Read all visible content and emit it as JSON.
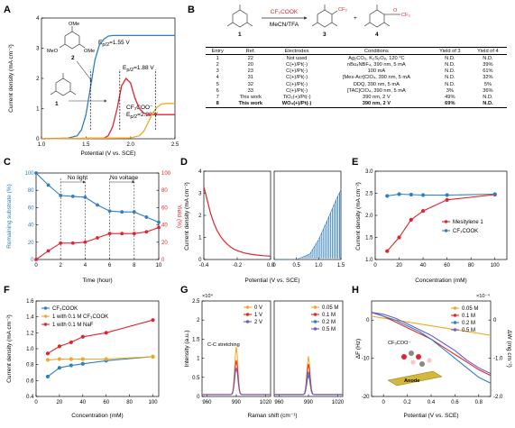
{
  "panels": {
    "A": "A",
    "B": "B",
    "C": "C",
    "D": "D",
    "E": "E",
    "F": "F",
    "G": "G",
    "H": "H"
  },
  "colors": {
    "blue": "#2f7fc1",
    "red": "#e0252e",
    "orange": "#f5a623",
    "purple": "#6a5acd",
    "gray": "#888888"
  },
  "chart_data": [
    {
      "panel": "A",
      "type": "line",
      "xlabel": "Potential (V vs. SCE)",
      "ylabel": "Current density (mA cm⁻²)",
      "xlim": [
        1.0,
        2.5
      ],
      "ylim": [
        0,
        4
      ],
      "xticks": [
        "1.0",
        "1.5",
        "2.0",
        "2.5"
      ],
      "yticks": [
        "0",
        "1",
        "2",
        "3",
        "4"
      ],
      "annotations": {
        "e1": "E",
        "e1sub": "p/2",
        "e1val": "=1.55 V",
        "e2": "E",
        "e2sub": "p/2",
        "e2val": "=1.88 V",
        "e3pre": "CF₃COO⁻",
        "e3": "E",
        "e3sub": "p/2",
        "e3val": "=2.28 V",
        "m1": "1",
        "m2": "2"
      },
      "series": [
        {
          "color": "#2f7fc1",
          "x": [
            1.0,
            1.3,
            1.4,
            1.45,
            1.5,
            1.55,
            1.6,
            1.65,
            1.7,
            1.75,
            1.8,
            1.85,
            1.9,
            2.0,
            2.1,
            2.2,
            2.3,
            2.4,
            2.5
          ],
          "y": [
            0.0,
            0.02,
            0.1,
            0.3,
            0.8,
            1.7,
            2.6,
            3.1,
            3.3,
            3.4,
            3.42,
            3.42,
            3.42,
            3.42,
            3.42,
            3.42,
            3.42,
            3.42,
            3.42
          ]
        },
        {
          "color": "#e0252e",
          "x": [
            1.0,
            1.7,
            1.75,
            1.8,
            1.85,
            1.9,
            1.95,
            2.0,
            2.05,
            2.1,
            2.15,
            2.2,
            2.3,
            2.4,
            2.5
          ],
          "y": [
            0.0,
            0.02,
            0.1,
            0.4,
            1.0,
            1.75,
            2.0,
            1.85,
            1.35,
            1.0,
            0.85,
            0.8,
            0.8,
            0.8,
            0.8
          ]
        },
        {
          "color": "#f5a623",
          "x": [
            1.0,
            2.0,
            2.1,
            2.15,
            2.2,
            2.25,
            2.3,
            2.35,
            2.4,
            2.45,
            2.5
          ],
          "y": [
            0.0,
            0.03,
            0.1,
            0.25,
            0.55,
            0.85,
            1.05,
            1.15,
            1.17,
            1.17,
            1.17
          ]
        }
      ],
      "markers": [
        1.55,
        1.88,
        2.28
      ]
    },
    {
      "panel": "C",
      "type": "line",
      "xlabel": "Time (hour)",
      "ylabel": "Remaining substrate (%)",
      "y2label": "Yield (%)",
      "xlim": [
        0,
        10
      ],
      "ylim": [
        0,
        100
      ],
      "y2lim": [
        0,
        100
      ],
      "xticks": [
        "0",
        "2",
        "4",
        "6",
        "8",
        "10"
      ],
      "yticks": [
        "0",
        "20",
        "40",
        "60",
        "80",
        "100"
      ],
      "annotations": {
        "nolight": "No light",
        "novoltage": "No voltage"
      },
      "series": [
        {
          "name": "Remaining substrate",
          "color": "#2f7fc1",
          "axis": "left",
          "x": [
            0,
            1,
            2,
            3,
            4,
            5,
            6,
            7,
            8,
            9,
            10
          ],
          "y": [
            100,
            86,
            74,
            73,
            72,
            63,
            56,
            55,
            55,
            49,
            43
          ]
        },
        {
          "name": "Yield",
          "color": "#e0252e",
          "axis": "right",
          "x": [
            0,
            1,
            2,
            3,
            4,
            5,
            6,
            7,
            8,
            9,
            10
          ],
          "y": [
            0,
            10,
            19,
            19,
            20,
            25,
            30,
            30,
            30,
            32,
            37
          ]
        }
      ]
    },
    {
      "panel": "D",
      "type": "line",
      "xlabel": "Potential (V vs. SCE)",
      "ylabel": "Current density (mA cm⁻²)",
      "left_xlim": [
        -0.4,
        0.0
      ],
      "left_xticks": [
        "-0.4",
        "-0.2",
        "0.0"
      ],
      "right_xlim": [
        0,
        1.5
      ],
      "right_xticks": [
        "0",
        "0.5",
        "1.0",
        "1.5"
      ],
      "ylim": [
        0,
        4
      ],
      "yticks": [
        "0",
        "1",
        "2",
        "3",
        "4"
      ],
      "series": [
        {
          "color": "#e0252e",
          "x": [
            -0.4,
            -0.38,
            -0.36,
            -0.34,
            -0.32,
            -0.3,
            -0.28,
            -0.26,
            -0.24,
            -0.22,
            -0.2,
            -0.16,
            -0.12,
            -0.08,
            -0.04,
            0.0
          ],
          "y": [
            3.3,
            2.7,
            2.1,
            1.65,
            1.3,
            1.05,
            0.85,
            0.7,
            0.57,
            0.47,
            0.4,
            0.3,
            0.24,
            0.2,
            0.17,
            0.15
          ]
        },
        {
          "color": "#2f7fc1",
          "x": [
            0.0,
            0.5,
            0.8,
            1.0,
            1.2,
            1.4,
            1.5
          ],
          "y": [
            0.0,
            0.0,
            0.25,
            0.9,
            1.8,
            2.75,
            3.15
          ],
          "chopped": true
        }
      ]
    },
    {
      "panel": "E",
      "type": "line",
      "xlabel": "Concentration (mM)",
      "ylabel": "Current density (mA cm⁻²)",
      "xlim": [
        0,
        110
      ],
      "ylim": [
        1.0,
        3.0
      ],
      "xticks": [
        "0",
        "20",
        "40",
        "60",
        "80",
        "100"
      ],
      "yticks": [
        "1.0",
        "1.5",
        "2.0",
        "2.5",
        "3.0"
      ],
      "series": [
        {
          "name": "Mesitylene 1",
          "color": "#e0252e",
          "x": [
            10,
            20,
            30,
            40,
            60,
            100
          ],
          "y": [
            1.19,
            1.5,
            1.9,
            2.1,
            2.35,
            2.47
          ]
        },
        {
          "name": "CF₃COOK",
          "color": "#2f7fc1",
          "x": [
            10,
            20,
            30,
            40,
            60,
            100
          ],
          "y": [
            2.44,
            2.48,
            2.47,
            2.46,
            2.46,
            2.48
          ]
        }
      ]
    },
    {
      "panel": "F",
      "type": "line",
      "xlabel": "Concentration (mM)",
      "ylabel": "Current density (mA cm⁻²)",
      "xlim": [
        0,
        105
      ],
      "ylim": [
        0.4,
        1.6
      ],
      "xticks": [
        "0",
        "20",
        "40",
        "60",
        "80",
        "100"
      ],
      "yticks": [
        "0.4",
        "0.6",
        "0.8",
        "1.0",
        "1.2",
        "1.4",
        "1.6"
      ],
      "series": [
        {
          "name": "CF₃COOK",
          "color": "#2f7fc1",
          "x": [
            10,
            20,
            30,
            40,
            60,
            100
          ],
          "y": [
            0.65,
            0.76,
            0.79,
            0.81,
            0.85,
            0.9
          ]
        },
        {
          "name": "1 with 0.1 M CF₃COOK",
          "color": "#f5a623",
          "x": [
            10,
            20,
            30,
            40,
            60,
            100
          ],
          "y": [
            0.86,
            0.87,
            0.87,
            0.87,
            0.87,
            0.9
          ]
        },
        {
          "name": "1 with 0.1 M NaF",
          "color": "#e0252e",
          "x": [
            10,
            20,
            30,
            40,
            60,
            100
          ],
          "y": [
            0.94,
            1.03,
            1.08,
            1.15,
            1.2,
            1.36
          ]
        }
      ]
    },
    {
      "panel": "G",
      "type": "line",
      "xlabel": "Raman shift (cm⁻¹)",
      "ylabel": "Intensity (a.u.)",
      "scale_note": "×10⁴",
      "xlim": [
        955,
        1025
      ],
      "xticks": [
        "960",
        "990",
        "1020"
      ],
      "ylim": [
        0,
        2.5
      ],
      "yticks": [
        "0",
        "0.5",
        "1",
        "1.5",
        "2",
        "2.5"
      ],
      "annotation": "C-C stretching",
      "left_series": [
        {
          "name": "0 V",
          "color": "#f5a623",
          "peak": 1.25
        },
        {
          "name": "1 V",
          "color": "#e0252e",
          "peak": 0.9
        },
        {
          "name": "2 V",
          "color": "#6a5acd",
          "peak": 0.7
        }
      ],
      "right_series": [
        {
          "name": "0.05 M",
          "color": "#f5a623",
          "peak": 1.0
        },
        {
          "name": "0.1 M",
          "color": "#e0252e",
          "peak": 0.8
        },
        {
          "name": "0.2 M",
          "color": "#2f7fc1",
          "peak": 0.6
        },
        {
          "name": "0.5 M",
          "color": "#6a5acd",
          "peak": 0.5
        }
      ]
    },
    {
      "panel": "H",
      "type": "line",
      "xlabel": "Potential (V vs. SCE)",
      "ylabel": "ΔF (Hz)",
      "y2label": "ΔW (mg cm⁻²)",
      "scale_note": "×10⁻⁴",
      "xlim": [
        -0.1,
        0.9
      ],
      "xticks": [
        "0",
        "0.2",
        "0.4",
        "0.6",
        "0.8"
      ],
      "ylim": [
        -20,
        5
      ],
      "yticks": [
        "-20",
        "-10",
        "0"
      ],
      "y2lim": [
        -2.0,
        0.5
      ],
      "y2ticks": [
        "-2.0",
        "-1.0",
        "0"
      ],
      "insets": {
        "anion": "CF₃COO⁻",
        "anode": "Anode"
      },
      "series": [
        {
          "name": "0.05 M",
          "color": "#f5a623",
          "x": [
            -0.1,
            0.0,
            0.1,
            0.2,
            0.3,
            0.4,
            0.5,
            0.6,
            0.7,
            0.8,
            0.9
          ],
          "y": [
            1,
            0.5,
            0,
            -0.5,
            -1,
            -1.5,
            -2,
            -2.5,
            -3,
            -3.5,
            -4
          ]
        },
        {
          "name": "0.1 M",
          "color": "#e0252e",
          "x": [
            -0.1,
            0.0,
            0.1,
            0.2,
            0.3,
            0.4,
            0.5,
            0.6,
            0.7,
            0.8,
            0.9
          ],
          "y": [
            2,
            1,
            -0.5,
            -2,
            -3.5,
            -5,
            -7,
            -9,
            -11,
            -13,
            -14.5
          ]
        },
        {
          "name": "0.2 M",
          "color": "#2f7fc1",
          "x": [
            -0.1,
            0.0,
            0.1,
            0.2,
            0.3,
            0.4,
            0.5,
            0.6,
            0.7,
            0.8,
            0.9
          ],
          "y": [
            2,
            1,
            0,
            -1.5,
            -3,
            -5,
            -7.5,
            -10,
            -12.5,
            -15,
            -16.5
          ]
        },
        {
          "name": "0.5 M",
          "color": "#6a5acd",
          "x": [
            -0.1,
            0.0,
            0.1,
            0.2,
            0.3,
            0.4,
            0.5,
            0.6,
            0.7,
            0.8,
            0.9
          ],
          "y": [
            2,
            1.5,
            0.5,
            -1,
            -2.5,
            -4,
            -6,
            -8,
            -10.5,
            -12.5,
            -14
          ]
        }
      ]
    }
  ],
  "reaction": {
    "reagent_top": "CF₃COOK",
    "reagent_bottom": "MeCN/TFA",
    "cmpd1": "1",
    "cmpd3": "3",
    "cmpd4": "4",
    "plus": "+",
    "cf3": "CF₃",
    "cf3b": "CF₃"
  },
  "table": {
    "headers": [
      "Entry",
      "Ref.",
      "Electrodes",
      "Conditions",
      "Yield of 3",
      "Yield of 4"
    ],
    "rows": [
      [
        "1",
        "22",
        "Not used",
        "Ag₂CO₃, K₂S₂O₈, 120 °C",
        "N.D.",
        "N.D."
      ],
      [
        "2",
        "20",
        "C(+)/Pt(-)",
        "nBu₄NBF₄, 390 nm, 5 mA",
        "N.D.",
        "39%"
      ],
      [
        "3",
        "23",
        "C(+)/Pt(-)",
        "100 mA",
        "N.D.",
        "61%"
      ],
      [
        "4",
        "31",
        "C(+)/Pt(-)",
        "[Mes-Acr]ClO₄, 390 nm, 5 mA",
        "N.D.",
        "32%"
      ],
      [
        "5",
        "32",
        "C(+)/Pt(-)",
        "DDQ, 390 nm, 5 mA",
        "N.D.",
        "5%"
      ],
      [
        "6",
        "33",
        "C(+)/Pt(-)",
        "[TAC]ClO₄, 390 nm, 5 mA",
        "3%",
        "36%"
      ],
      [
        "7",
        "This work",
        "TiO₂(+)/Pt(-)",
        "390 nm, 2 V",
        "49%",
        "N.D."
      ],
      [
        "8",
        "This work",
        "WO₃(+)/Pt(-)",
        "390 nm, 2 V",
        "69%",
        "N.D."
      ]
    ]
  }
}
